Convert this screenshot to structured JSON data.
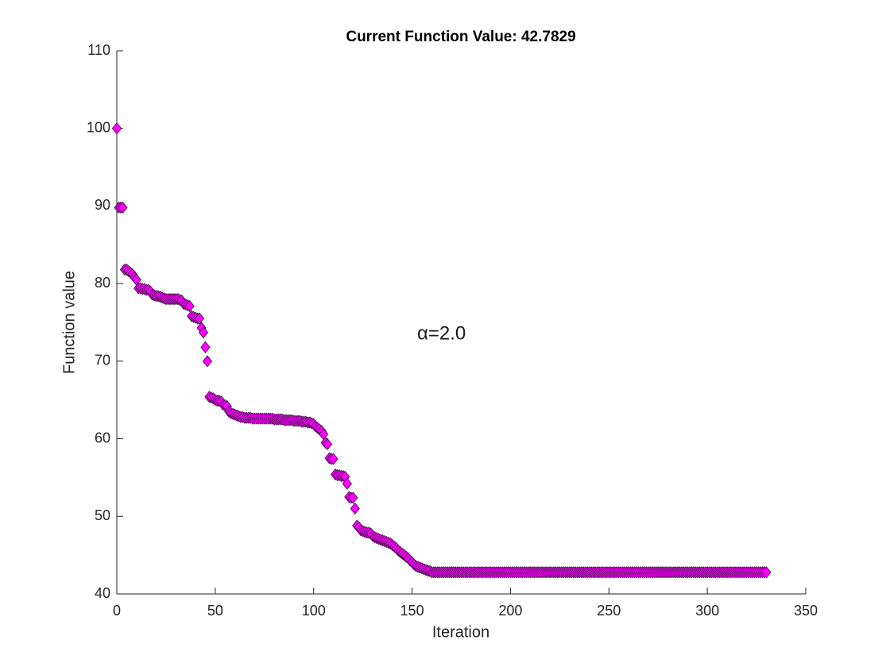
{
  "chart_data": {
    "type": "scatter",
    "title": "Current Function Value: 42.7829",
    "xlabel": "Iteration",
    "ylabel": "Function value",
    "annotations": [
      "α=2.0"
    ],
    "color": "#ff00ff",
    "edgecolor": "#3a1040",
    "marker": "diamond",
    "xlim": [
      0,
      350
    ],
    "xticks": [
      0,
      50,
      100,
      150,
      200,
      250,
      300,
      350
    ],
    "ylim": [
      40,
      110
    ],
    "yticks": [
      40,
      50,
      60,
      70,
      80,
      90,
      100,
      110
    ],
    "grid": false,
    "x": [
      0,
      1,
      2,
      3,
      4,
      5,
      6,
      7,
      8,
      9,
      10,
      11,
      12,
      13,
      14,
      15,
      16,
      17,
      18,
      19,
      20,
      21,
      22,
      23,
      24,
      25,
      26,
      27,
      28,
      29,
      30,
      31,
      32,
      33,
      34,
      35,
      36,
      37,
      38,
      39,
      40,
      41,
      42,
      43,
      44,
      45,
      46,
      47,
      48,
      49,
      50,
      51,
      52,
      53,
      54,
      55,
      56,
      57,
      58,
      59,
      60,
      61,
      62,
      63,
      64,
      65,
      66,
      67,
      68,
      69,
      70,
      71,
      72,
      73,
      74,
      75,
      76,
      77,
      78,
      79,
      80,
      81,
      82,
      83,
      84,
      85,
      86,
      87,
      88,
      89,
      90,
      91,
      92,
      93,
      94,
      95,
      96,
      97,
      98,
      99,
      100,
      101,
      102,
      103,
      104,
      105,
      106,
      107,
      108,
      109,
      110,
      111,
      112,
      113,
      114,
      115,
      116,
      117,
      118,
      119,
      120,
      121,
      122,
      123,
      124,
      125,
      126,
      127,
      128,
      129,
      130,
      131,
      132,
      133,
      134,
      135,
      136,
      137,
      138,
      139,
      140,
      141,
      142,
      143,
      144,
      145,
      146,
      147,
      148,
      149,
      150,
      151,
      152,
      153,
      154,
      155,
      156,
      157,
      158,
      159,
      160,
      161,
      162,
      163,
      164,
      165,
      166,
      167,
      168,
      169,
      170,
      171,
      172,
      173,
      174,
      175,
      176,
      177,
      178,
      179,
      180,
      181,
      182,
      183,
      184,
      185,
      186,
      187,
      188,
      189,
      190,
      191,
      192,
      193,
      194,
      195,
      196,
      197,
      198,
      199,
      200,
      201,
      202,
      203,
      204,
      205,
      206,
      207,
      208,
      209,
      210,
      211,
      212,
      213,
      214,
      215,
      216,
      217,
      218,
      219,
      220,
      221,
      222,
      223,
      224,
      225,
      226,
      227,
      228,
      229,
      230,
      231,
      232,
      233,
      234,
      235,
      236,
      237,
      238,
      239,
      240,
      241,
      242,
      243,
      244,
      245,
      246,
      247,
      248,
      249,
      250,
      251,
      252,
      253,
      254,
      255,
      256,
      257,
      258,
      259,
      260,
      261,
      262,
      263,
      264,
      265,
      266,
      267,
      268,
      269,
      270,
      271,
      272,
      273,
      274,
      275,
      276,
      277,
      278,
      279,
      280,
      281,
      282,
      283,
      284,
      285,
      286,
      287,
      288,
      289,
      290,
      291,
      292,
      293,
      294,
      295,
      296,
      297,
      298,
      299,
      300,
      301,
      302,
      303,
      304,
      305,
      306,
      307,
      308,
      309,
      310,
      311,
      312,
      313,
      314,
      315,
      316,
      317,
      318,
      319,
      320,
      321,
      322,
      323,
      324,
      325,
      326,
      327,
      328,
      329,
      330
    ],
    "values": [
      100,
      89.8,
      89.8,
      89.8,
      81.8,
      81.8,
      81.6,
      81.4,
      81.2,
      80.8,
      80.5,
      79.4,
      79.4,
      79.3,
      79.3,
      79.2,
      79.2,
      79.0,
      78.6,
      78.5,
      78.4,
      78.4,
      78.3,
      78.2,
      78.1,
      78.0,
      78.0,
      78.0,
      78.0,
      78.0,
      78.0,
      78.0,
      77.9,
      77.8,
      77.4,
      77.3,
      77.2,
      77.1,
      75.8,
      75.7,
      75.6,
      75.5,
      75.5,
      74.3,
      73.7,
      71.8,
      70.0,
      65.4,
      65.3,
      65.2,
      65.0,
      64.9,
      64.9,
      64.8,
      64.4,
      64.3,
      64.2,
      63.5,
      63.3,
      63.2,
      63.1,
      63.0,
      62.9,
      62.8,
      62.8,
      62.7,
      62.7,
      62.7,
      62.7,
      62.6,
      62.6,
      62.6,
      62.6,
      62.6,
      62.6,
      62.6,
      62.6,
      62.6,
      62.6,
      62.6,
      62.5,
      62.5,
      62.5,
      62.5,
      62.5,
      62.4,
      62.4,
      62.4,
      62.4,
      62.4,
      62.3,
      62.3,
      62.3,
      62.3,
      62.2,
      62.2,
      62.2,
      62.1,
      62.1,
      62.0,
      61.9,
      61.6,
      61.4,
      61.2,
      61.0,
      60.6,
      59.5,
      59.3,
      57.5,
      57.4,
      57.4,
      55.4,
      55.3,
      55.3,
      55.2,
      55.2,
      55.1,
      54.2,
      52.5,
      52.4,
      52.4,
      51.0,
      48.8,
      48.6,
      48.2,
      48.1,
      48.0,
      47.9,
      47.9,
      47.8,
      47.5,
      47.3,
      47.2,
      47.1,
      47.0,
      46.9,
      46.8,
      46.7,
      46.6,
      46.5,
      46.3,
      46.1,
      45.9,
      45.6,
      45.4,
      45.2,
      45.0,
      44.8,
      44.6,
      44.3,
      44.1,
      43.8,
      43.6,
      43.5,
      43.4,
      43.3,
      43.2,
      43.1,
      43.0,
      42.95,
      42.79,
      42.79,
      42.79,
      42.79,
      42.79,
      42.79,
      42.79,
      42.79,
      42.79,
      42.79,
      42.79,
      42.79,
      42.79,
      42.79,
      42.79,
      42.79,
      42.79,
      42.79,
      42.79,
      42.79,
      42.79,
      42.79,
      42.79,
      42.79,
      42.79,
      42.79,
      42.79,
      42.79,
      42.79,
      42.79,
      42.79,
      42.79,
      42.79,
      42.79,
      42.79,
      42.79,
      42.79,
      42.79,
      42.79,
      42.79,
      42.79,
      42.79,
      42.79,
      42.79,
      42.79,
      42.79,
      42.79,
      42.79,
      42.79,
      42.79,
      42.79,
      42.79,
      42.79,
      42.79,
      42.79,
      42.79,
      42.79,
      42.79,
      42.79,
      42.79,
      42.79,
      42.79,
      42.79,
      42.79,
      42.79,
      42.79,
      42.79,
      42.79,
      42.79,
      42.79,
      42.79,
      42.79,
      42.79,
      42.79,
      42.79,
      42.79,
      42.79,
      42.79,
      42.79,
      42.79,
      42.79,
      42.79,
      42.79,
      42.79,
      42.79,
      42.79,
      42.79,
      42.79,
      42.79,
      42.79,
      42.79,
      42.79,
      42.79,
      42.79,
      42.79,
      42.79,
      42.79,
      42.79,
      42.79,
      42.79,
      42.79,
      42.79,
      42.79,
      42.79,
      42.79,
      42.79,
      42.79,
      42.79,
      42.79,
      42.79,
      42.79,
      42.79,
      42.79,
      42.79,
      42.79,
      42.79,
      42.79,
      42.79,
      42.79,
      42.79,
      42.79,
      42.79,
      42.79,
      42.79,
      42.79,
      42.79,
      42.79,
      42.79,
      42.79,
      42.79,
      42.79,
      42.79,
      42.79,
      42.79,
      42.79,
      42.79,
      42.79,
      42.79,
      42.79,
      42.79,
      42.79,
      42.79,
      42.79,
      42.79,
      42.79,
      42.79,
      42.79,
      42.79,
      42.79,
      42.79,
      42.79,
      42.79,
      42.79,
      42.79,
      42.79,
      42.79,
      42.79,
      42.79,
      42.79,
      42.79,
      42.79,
      42.79,
      42.79,
      42.79,
      42.79,
      42.79,
      42.79,
      42.79,
      42.79,
      42.79,
      42.7829
    ]
  }
}
